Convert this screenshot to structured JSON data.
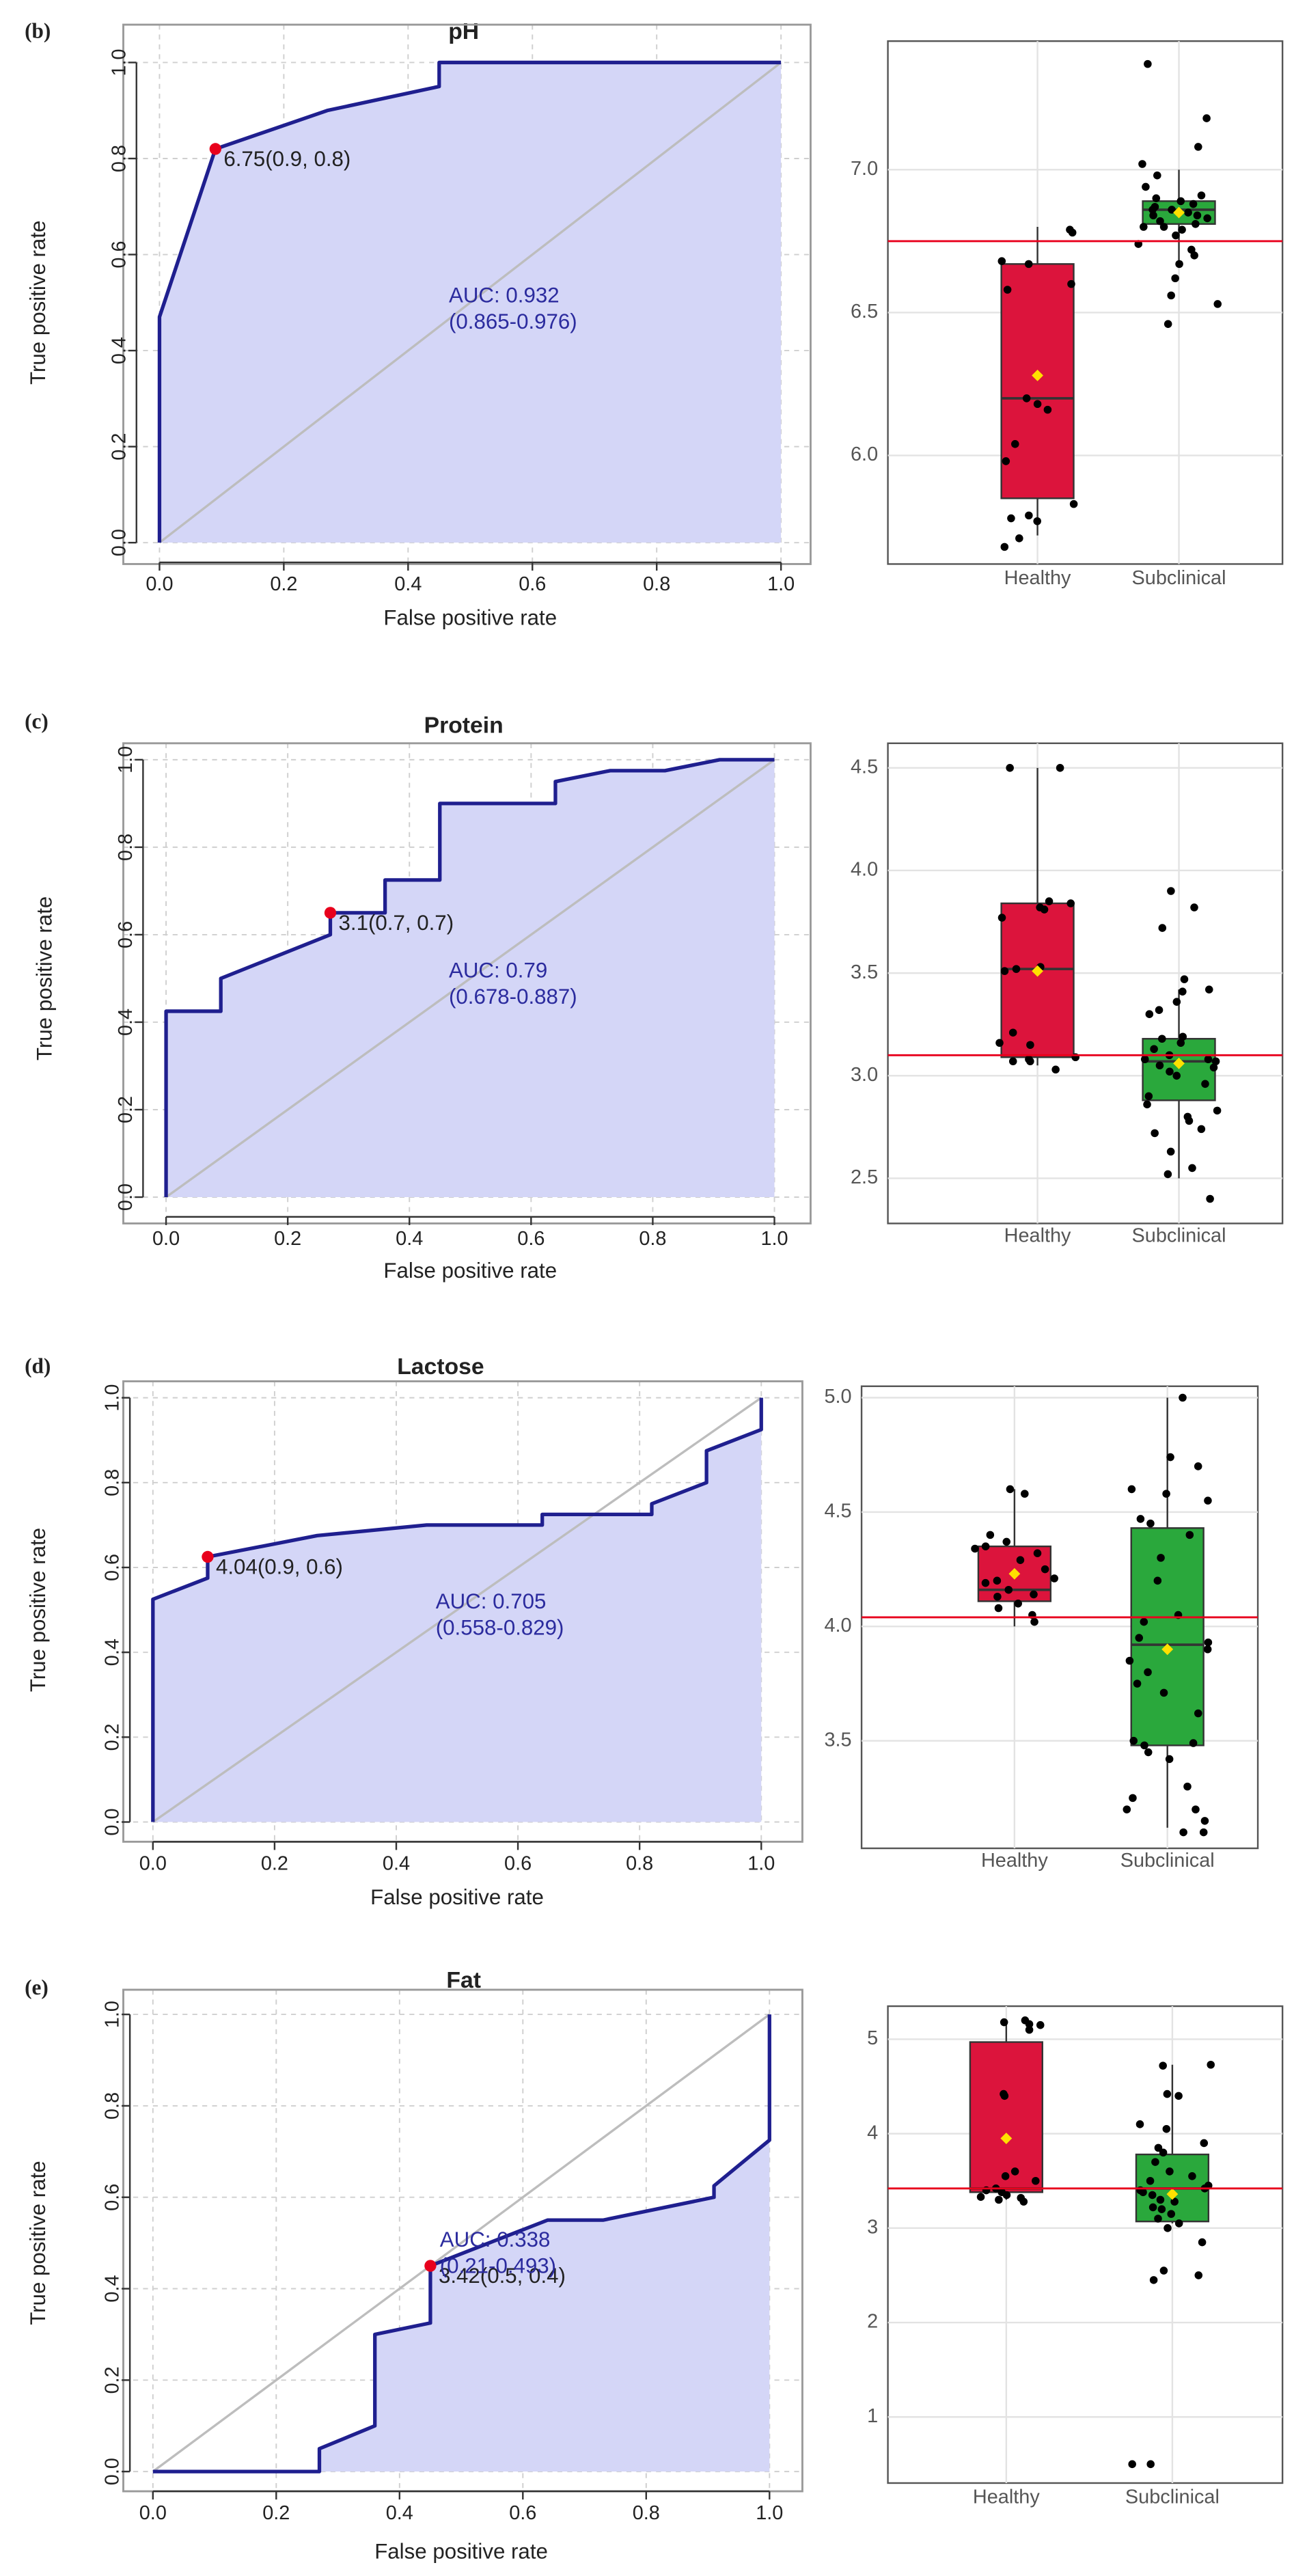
{
  "figure": {
    "background": "#ffffff"
  },
  "colors": {
    "roc_line": "#1f1f8f",
    "roc_fill": "#d4d6f7",
    "diagonal": "#bdbdbd",
    "cutoff_point": "#e8001c",
    "auc_text": "#2b2b9e",
    "healthy_box": "#dc143c",
    "subclinical_box": "#2aa83c",
    "mean_marker": "#ffe000",
    "threshold_line": "#e8001c",
    "jitter_point": "#000000",
    "grid": "#cfcfcf",
    "text": "#222222"
  },
  "chart_data": [
    {
      "id": "ph",
      "panel_label": "(b)",
      "type": "line",
      "title": "pH",
      "xlabel": "False positive rate",
      "ylabel": "True positive rate",
      "xlim": [
        0,
        1
      ],
      "ylim": [
        0,
        1
      ],
      "xticks": [
        "0.0",
        "0.2",
        "0.4",
        "0.6",
        "0.8",
        "1.0"
      ],
      "yticks": [
        "0.0",
        "0.2",
        "0.4",
        "0.6",
        "0.8",
        "1.0"
      ],
      "roc": [
        [
          0,
          0
        ],
        [
          0,
          0.47
        ],
        [
          0.09,
          0.82
        ],
        [
          0.27,
          0.9
        ],
        [
          0.45,
          0.95
        ],
        [
          0.45,
          1.0
        ],
        [
          1,
          1
        ]
      ],
      "cutoff": {
        "x": 0.09,
        "y": 0.82,
        "label": "6.75(0.9, 0.8)"
      },
      "auc": {
        "line1": "AUC: 0.932",
        "line2": "(0.865-0.976)",
        "x": 0.5,
        "y": 0.48
      }
    },
    {
      "id": "ph_box",
      "type": "box",
      "categories": [
        "Healthy",
        "Subclinical"
      ],
      "ylim": [
        5.62,
        7.45
      ],
      "yticks": [
        {
          "value": 6.0,
          "label": "6.0"
        },
        {
          "value": 6.5,
          "label": "6.5"
        },
        {
          "value": 7.0,
          "label": "7.0"
        }
      ],
      "threshold": 6.75,
      "boxes": [
        {
          "min": 5.72,
          "q1": 5.85,
          "median": 6.2,
          "q3": 6.67,
          "max": 6.8,
          "mean": 6.28,
          "points": [
            6.79,
            6.78,
            6.68,
            6.67,
            6.6,
            6.58,
            6.2,
            6.18,
            6.16,
            6.04,
            5.98,
            5.83,
            5.79,
            5.78,
            5.77,
            5.71,
            5.68
          ]
        },
        {
          "min": 6.68,
          "q1": 6.81,
          "median": 6.86,
          "q3": 6.89,
          "max": 7.0,
          "mean": 6.85,
          "points": [
            7.37,
            7.18,
            7.08,
            7.02,
            6.98,
            6.94,
            6.91,
            6.9,
            6.89,
            6.88,
            6.87,
            6.86,
            6.86,
            6.85,
            6.84,
            6.84,
            6.83,
            6.82,
            6.81,
            6.8,
            6.8,
            6.79,
            6.77,
            6.74,
            6.72,
            6.7,
            6.67,
            6.62,
            6.56,
            6.53,
            6.46
          ]
        }
      ]
    },
    {
      "id": "protein",
      "panel_label": "(c)",
      "type": "line",
      "title": "Protein",
      "xlabel": "False positive rate",
      "ylabel": "True positive rate",
      "xlim": [
        0,
        1
      ],
      "ylim": [
        0,
        1
      ],
      "xticks": [
        "0.0",
        "0.2",
        "0.4",
        "0.6",
        "0.8",
        "1.0"
      ],
      "yticks": [
        "0.0",
        "0.2",
        "0.4",
        "0.6",
        "0.8",
        "1.0"
      ],
      "roc": [
        [
          0,
          0
        ],
        [
          0,
          0.425
        ],
        [
          0.09,
          0.425
        ],
        [
          0.09,
          0.5
        ],
        [
          0.27,
          0.6
        ],
        [
          0.27,
          0.65
        ],
        [
          0.36,
          0.65
        ],
        [
          0.36,
          0.725
        ],
        [
          0.45,
          0.725
        ],
        [
          0.45,
          0.9
        ],
        [
          0.64,
          0.9
        ],
        [
          0.64,
          0.95
        ],
        [
          0.73,
          0.975
        ],
        [
          0.82,
          0.975
        ],
        [
          0.91,
          1.0
        ],
        [
          1,
          1
        ]
      ],
      "cutoff": {
        "x": 0.27,
        "y": 0.65,
        "label": "3.1(0.7, 0.7)"
      },
      "auc": {
        "line1": "AUC: 0.79",
        "line2": "(0.678-0.887)",
        "x": 0.5,
        "y": 0.48
      }
    },
    {
      "id": "protein_box",
      "type": "box",
      "categories": [
        "Healthy",
        "Subclinical"
      ],
      "ylim": [
        2.28,
        4.62
      ],
      "yticks": [
        {
          "value": 2.5,
          "label": "2.5"
        },
        {
          "value": 3.0,
          "label": "3.0"
        },
        {
          "value": 3.5,
          "label": "3.5"
        },
        {
          "value": 4.0,
          "label": "4.0"
        },
        {
          "value": 4.5,
          "label": "4.5"
        }
      ],
      "threshold": 3.1,
      "boxes": [
        {
          "min": 3.05,
          "q1": 3.09,
          "median": 3.52,
          "q3": 3.84,
          "max": 4.5,
          "mean": 3.51,
          "points": [
            4.5,
            4.5,
            3.85,
            3.84,
            3.82,
            3.81,
            3.77,
            3.53,
            3.52,
            3.51,
            3.21,
            3.16,
            3.15,
            3.09,
            3.08,
            3.07,
            3.07,
            3.03
          ]
        },
        {
          "min": 2.5,
          "q1": 2.88,
          "median": 3.07,
          "q3": 3.18,
          "max": 3.42,
          "mean": 3.06,
          "points": [
            3.9,
            3.82,
            3.72,
            3.47,
            3.42,
            3.41,
            3.36,
            3.32,
            3.3,
            3.19,
            3.18,
            3.16,
            3.13,
            3.1,
            3.08,
            3.08,
            3.07,
            3.05,
            3.04,
            3.02,
            3.0,
            2.96,
            2.9,
            2.86,
            2.83,
            2.8,
            2.78,
            2.74,
            2.72,
            2.63,
            2.55,
            2.52,
            2.4
          ]
        }
      ]
    },
    {
      "id": "lactose",
      "panel_label": "(d)",
      "type": "line",
      "title": "Lactose",
      "xlabel": "False positive rate",
      "ylabel": "True positive rate",
      "xlim": [
        0,
        1
      ],
      "ylim": [
        0,
        1
      ],
      "xticks": [
        "0.0",
        "0.2",
        "0.4",
        "0.6",
        "0.8",
        "1.0"
      ],
      "yticks": [
        "0.0",
        "0.2",
        "0.4",
        "0.6",
        "0.8",
        "1.0"
      ],
      "roc": [
        [
          0,
          0
        ],
        [
          0,
          0.525
        ],
        [
          0.09,
          0.575
        ],
        [
          0.09,
          0.625
        ],
        [
          0.27,
          0.675
        ],
        [
          0.45,
          0.7
        ],
        [
          0.64,
          0.7
        ],
        [
          0.64,
          0.725
        ],
        [
          0.82,
          0.725
        ],
        [
          0.82,
          0.75
        ],
        [
          0.91,
          0.8
        ],
        [
          0.91,
          0.875
        ],
        [
          1,
          0.925
        ],
        [
          1,
          1
        ]
      ],
      "cutoff": {
        "x": 0.09,
        "y": 0.625,
        "label": "4.04(0.9, 0.6)"
      },
      "auc": {
        "line1": "AUC: 0.705",
        "line2": "(0.558-0.829)",
        "x": 0.5,
        "y": 0.48
      }
    },
    {
      "id": "lactose_box",
      "type": "box",
      "categories": [
        "Healthy",
        "Subclinical"
      ],
      "ylim": [
        3.03,
        5.05
      ],
      "yticks": [
        {
          "value": 3.5,
          "label": "3.5"
        },
        {
          "value": 4.0,
          "label": "4.0"
        },
        {
          "value": 4.5,
          "label": "4.5"
        },
        {
          "value": 5.0,
          "label": "5.0"
        }
      ],
      "threshold": 4.04,
      "boxes": [
        {
          "min": 4.0,
          "q1": 4.11,
          "median": 4.16,
          "q3": 4.35,
          "max": 4.6,
          "mean": 4.23,
          "points": [
            4.6,
            4.58,
            4.4,
            4.37,
            4.35,
            4.34,
            4.32,
            4.29,
            4.25,
            4.21,
            4.2,
            4.19,
            4.16,
            4.14,
            4.13,
            4.1,
            4.08,
            4.05,
            4.02
          ]
        },
        {
          "min": 3.12,
          "q1": 3.48,
          "median": 3.92,
          "q3": 4.43,
          "max": 5.0,
          "mean": 3.9,
          "points": [
            5.0,
            4.74,
            4.7,
            4.6,
            4.58,
            4.55,
            4.47,
            4.45,
            4.4,
            4.3,
            4.2,
            4.05,
            4.02,
            3.95,
            3.93,
            3.9,
            3.85,
            3.8,
            3.75,
            3.71,
            3.62,
            3.5,
            3.49,
            3.48,
            3.45,
            3.42,
            3.3,
            3.25,
            3.2,
            3.2,
            3.15,
            3.1,
            3.1
          ]
        }
      ]
    },
    {
      "id": "fat",
      "panel_label": "(e)",
      "type": "line",
      "title": "Fat",
      "xlabel": "False positive rate",
      "ylabel": "True positive rate",
      "xlim": [
        0,
        1
      ],
      "ylim": [
        0,
        1
      ],
      "xticks": [
        "0.0",
        "0.2",
        "0.4",
        "0.6",
        "0.8",
        "1.0"
      ],
      "yticks": [
        "0.0",
        "0.2",
        "0.4",
        "0.6",
        "0.8",
        "1.0"
      ],
      "roc": [
        [
          0,
          0
        ],
        [
          0.27,
          0
        ],
        [
          0.27,
          0.05
        ],
        [
          0.36,
          0.1
        ],
        [
          0.36,
          0.3
        ],
        [
          0.45,
          0.325
        ],
        [
          0.45,
          0.45
        ],
        [
          0.64,
          0.55
        ],
        [
          0.73,
          0.55
        ],
        [
          0.91,
          0.6
        ],
        [
          0.91,
          0.625
        ],
        [
          1,
          0.725
        ],
        [
          1,
          1
        ]
      ],
      "cutoff": {
        "x": 0.45,
        "y": 0.45,
        "label": "3.42(0.5, 0.4)"
      },
      "auc": {
        "line1": "AUC: 0.338",
        "line2": "(0.21-0.493)",
        "x": 0.5,
        "y": 0.47
      }
    },
    {
      "id": "fat_box",
      "type": "box",
      "categories": [
        "Healthy",
        "Subclinical"
      ],
      "ylim": [
        0.3,
        5.35
      ],
      "yticks": [
        {
          "value": 1,
          "label": "1"
        },
        {
          "value": 2,
          "label": "2"
        },
        {
          "value": 3,
          "label": "3"
        },
        {
          "value": 4,
          "label": "4"
        },
        {
          "value": 5,
          "label": "5"
        }
      ],
      "threshold": 3.42,
      "boxes": [
        {
          "min": 3.3,
          "q1": 3.38,
          "median": 3.42,
          "q3": 4.97,
          "max": 5.2,
          "mean": 3.95,
          "points": [
            5.2,
            5.18,
            5.16,
            5.15,
            5.1,
            4.42,
            4.4,
            3.6,
            3.55,
            3.5,
            3.42,
            3.4,
            3.38,
            3.35,
            3.33,
            3.32,
            3.3,
            3.28
          ]
        },
        {
          "min": 3.05,
          "q1": 3.07,
          "median": 3.42,
          "q3": 3.78,
          "max": 4.73,
          "mean": 3.36,
          "points": [
            4.73,
            4.72,
            4.42,
            4.4,
            4.1,
            4.05,
            3.9,
            3.85,
            3.8,
            3.7,
            3.6,
            3.55,
            3.5,
            3.45,
            3.42,
            3.4,
            3.38,
            3.35,
            3.3,
            3.28,
            3.22,
            3.2,
            3.15,
            3.1,
            3.05,
            3.0,
            2.85,
            2.55,
            2.5,
            2.45,
            0.5,
            0.5
          ]
        }
      ]
    }
  ]
}
